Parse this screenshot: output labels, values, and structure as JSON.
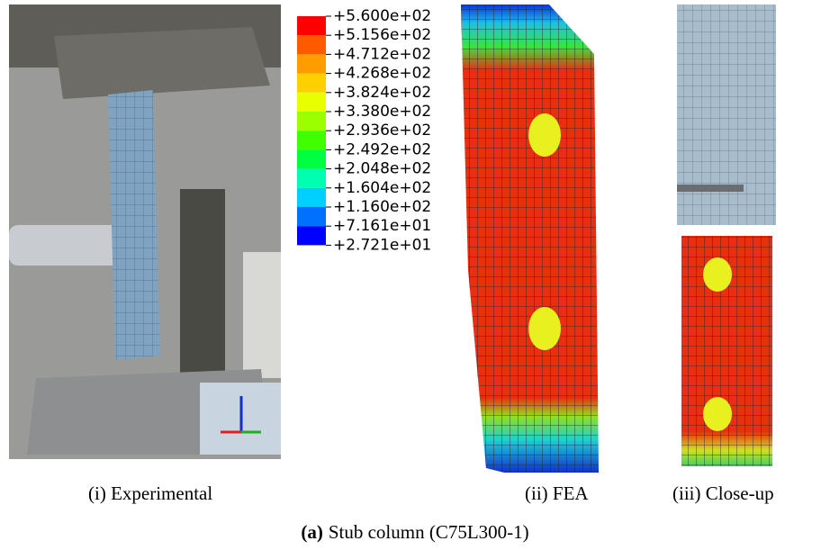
{
  "legend": {
    "labels": [
      "+5.600e+02",
      "+5.156e+02",
      "+4.712e+02",
      "+4.268e+02",
      "+3.824e+02",
      "+3.380e+02",
      "+2.936e+02",
      "+2.492e+02",
      "+2.048e+02",
      "+1.604e+02",
      "+1.160e+02",
      "+7.161e+01",
      "+2.721e+01"
    ]
  },
  "panels": [
    {
      "caption": "(i) Experimental"
    },
    {
      "caption": "(ii) FEA"
    },
    {
      "caption": "(iii) Close-up"
    }
  ],
  "figure_caption": {
    "label": "(a)",
    "text": "Stub column (C75L300-1)"
  }
}
